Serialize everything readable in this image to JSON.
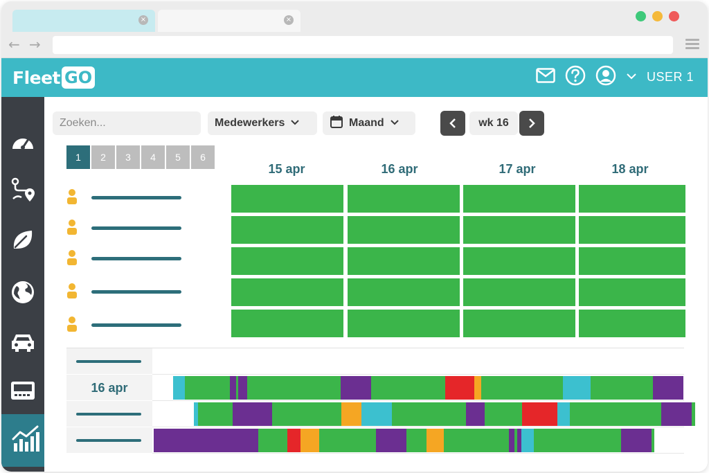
{
  "app": {
    "brand_left": "Fleet",
    "brand_right": "GO",
    "user_label": "USER 1"
  },
  "browser": {
    "tab_close": "×",
    "back": "←",
    "forward": "→"
  },
  "toolbar": {
    "search_placeholder": "Zoeken...",
    "employees_dropdown": "Medewerkers",
    "period_dropdown": "Maand",
    "week_label": "wk 16",
    "prev": "‹",
    "next": "›"
  },
  "pager": [
    "1",
    "2",
    "3",
    "4",
    "5",
    "6"
  ],
  "dates": [
    "15 apr",
    "16 apr",
    "17 apr",
    "18 apr"
  ],
  "timeline": {
    "date_label": "16 apr"
  },
  "colors": {
    "accent": "#3db9c6",
    "dark_teal": "#2d6e7a",
    "green": "#3bb54a",
    "purple": "#6b2f91",
    "cyan": "#3cc0cf",
    "red": "#e52629",
    "orange": "#f5a623",
    "sidebar": "#3b3f45",
    "person_icon": "#f2b632"
  },
  "sidebar_icons": [
    "speedometer-icon",
    "route-icon",
    "leaf-icon",
    "globe-icon",
    "car-icon",
    "device-icon",
    "chart-icon"
  ]
}
